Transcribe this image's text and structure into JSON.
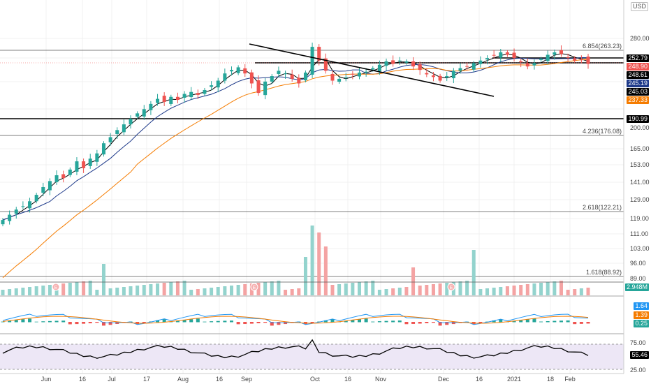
{
  "chart_data": {
    "type": "candlestick",
    "currency": "USD",
    "price_axis_ticks": [
      280,
      200,
      190.99,
      176.08,
      165,
      153,
      141,
      129,
      119,
      111,
      103,
      96,
      89
    ],
    "x_tick_labels": [
      "Jun",
      "16",
      "Jul",
      "17",
      "Aug",
      "16",
      "Sep",
      "Oct",
      "16",
      "Nov",
      "Dec",
      "16",
      "2021",
      "18",
      "Feb"
    ],
    "fib_levels": [
      {
        "label": "6.854(263.23)",
        "value": 263.23
      },
      {
        "label": "4.236(176.08)",
        "value": 176.08
      },
      {
        "label": "2.618(122.21)",
        "value": 122.21
      },
      {
        "label": "1.618(88.92)",
        "value": 88.92
      }
    ],
    "horizontal_levels": [
      252.79,
      248.9,
      190.99
    ],
    "price_tags": [
      {
        "text": "252.79",
        "color": "#000000"
      },
      {
        "text": "248.90",
        "color": "#ef5350"
      },
      {
        "text": "248.61",
        "color": "#000000"
      },
      {
        "text": "245.19",
        "color": "#1e3a8a"
      },
      {
        "text": "245.03",
        "color": "#000000"
      },
      {
        "text": "237.33",
        "color": "#f57c00"
      },
      {
        "text": "190.99",
        "color": "#000000"
      }
    ],
    "candles_close": [
      118,
      121,
      124,
      126,
      129,
      133,
      138,
      142,
      146,
      144,
      150,
      156,
      151,
      158,
      162,
      170,
      175,
      181,
      186,
      191,
      196,
      200,
      205,
      210,
      207,
      212,
      209,
      215,
      217,
      214,
      219,
      224,
      229,
      237,
      241,
      244,
      237,
      226,
      216,
      228,
      234,
      240,
      237,
      231,
      226,
      238,
      269,
      252,
      240,
      229,
      231,
      233,
      236,
      238,
      239,
      243,
      247,
      251,
      248,
      252,
      251,
      245,
      241,
      236,
      233,
      229,
      234,
      240,
      243,
      245,
      249,
      252,
      255,
      258,
      262,
      259,
      255,
      250,
      245,
      249,
      254,
      259,
      262,
      260,
      256,
      252,
      253,
      248
    ],
    "ma_fast_label": "248.61",
    "ma_mid_label": "245.19",
    "ma_slow_label": "237.33",
    "volume": {
      "value_label": "2.948M"
    },
    "earnings_markers": [
      "E",
      "E",
      "E"
    ],
    "macd": {
      "macd": "1.64",
      "signal": "1.39",
      "histogram": "0.25"
    },
    "rsi": {
      "value": "55.46",
      "upper": "75.00",
      "lower": "25.00"
    }
  }
}
